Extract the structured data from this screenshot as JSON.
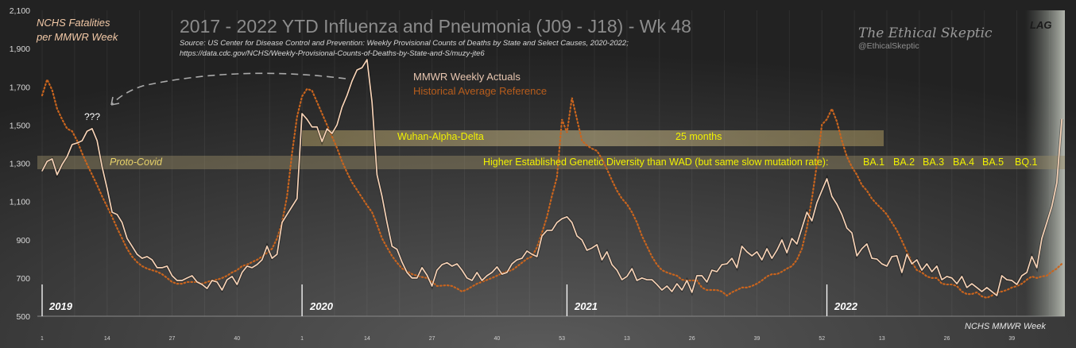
{
  "header": {
    "title": "2017 - 2022 YTD Influenza and Pneumonia (J09 - J18) - Wk 48",
    "source_line1": "Source: US Center for Disease Control and Prevention: Weekly Provisional Counts of Deaths by State and Select Causes, 2020-2022;",
    "source_line2": "https://data.cdc.gov/NCHS/Weekly-Provisional-Counts-of-Deaths-by-State-and-S/muzy-jte6",
    "brand": "The Ethical Skeptic",
    "handle": "@EthicalSkeptic"
  },
  "annotations": {
    "lag": "LAG",
    "question": "???",
    "proto_covid": "Proto-Covid",
    "wad": "Wuhan-Alpha-Delta",
    "months": "25 months",
    "diversity": "Higher Established Genetic Diversity than WAD (but same slow mutation rate):",
    "variants": [
      "BA.1",
      "BA.2",
      "BA.3",
      "BA.4",
      "BA.5",
      "BQ.1"
    ],
    "years": [
      "2019",
      "2020",
      "2021",
      "2022"
    ]
  },
  "chart_data": {
    "type": "line",
    "title": "2017 - 2022 YTD Influenza and Pneumonia (J09 - J18) - Wk 48",
    "ylabel_line1": "NCHS Fatalities",
    "ylabel_line2": "per MMWR Week",
    "xlabel": "NCHS MMWR Week",
    "ylim": [
      500,
      2100
    ],
    "yticks": [
      "2,100",
      "1,900",
      "1,700",
      "1,500",
      "1,300",
      "1,100",
      "900",
      "700",
      "500"
    ],
    "ytick_values": [
      2100,
      1900,
      1700,
      1500,
      1300,
      1100,
      900,
      700,
      500
    ],
    "xtick_labels": [
      "1",
      "14",
      "27",
      "40",
      "1",
      "14",
      "27",
      "40",
      "53",
      "13",
      "26",
      "39",
      "52",
      "13",
      "26",
      "39"
    ],
    "xtick_index": [
      0,
      13,
      26,
      39,
      52,
      65,
      78,
      91,
      104,
      117,
      130,
      143,
      156,
      168,
      181,
      194
    ],
    "years": [
      "2019",
      "2020",
      "2021",
      "2022"
    ],
    "year_start_index": [
      0,
      52,
      105,
      157
    ],
    "legend": [
      "MMWR Weekly Actuals",
      "Historical Average Reference"
    ],
    "colors": {
      "actual": "#f6d2b6",
      "historical": "#c8641e"
    },
    "series": [
      {
        "name": "MMWR Weekly Actuals",
        "style": "solid",
        "values": [
          1260,
          1310,
          1323,
          1240,
          1294,
          1335,
          1398,
          1406,
          1418,
          1468,
          1481,
          1418,
          1281,
          1169,
          1044,
          1032,
          990,
          907,
          866,
          824,
          803,
          812,
          795,
          754,
          754,
          762,
          712,
          687,
          687,
          700,
          712,
          679,
          666,
          645,
          687,
          679,
          637,
          691,
          708,
          666,
          729,
          762,
          754,
          770,
          795,
          866,
          803,
          824,
          990,
          1032,
          1074,
          1115,
          1560,
          1530,
          1490,
          1490,
          1414,
          1480,
          1456,
          1501,
          1593,
          1655,
          1730,
          1788,
          1800,
          1842,
          1620,
          1240,
          1127,
          990,
          866,
          850,
          783,
          729,
          700,
          700,
          754,
          715,
          658,
          741,
          770,
          780,
          762,
          774,
          741,
          700,
          687,
          729,
          687,
          712,
          729,
          758,
          720,
          729,
          774,
          795,
          803,
          841,
          824,
          812,
          920,
          949,
          949,
          990,
          1010,
          1020,
          990,
          920,
          899,
          845,
          857,
          874,
          795,
          837,
          770,
          741,
          691,
          708,
          749,
          687,
          700,
          691,
          691,
          666,
          637,
          658,
          629,
          670,
          637,
          687,
          625,
          712,
          712,
          679,
          741,
          733,
          770,
          774,
          803,
          754,
          866,
          837,
          816,
          837,
          795,
          853,
          803,
          845,
          899,
          832,
          907,
          878,
          961,
          1044,
          999,
          1094,
          1157,
          1219,
          1127,
          1086,
          1032,
          961,
          936,
          816,
          853,
          878,
          803,
          799,
          774,
          762,
          812,
          816,
          729,
          824,
          774,
          795,
          741,
          774,
          733,
          762,
          691,
          708,
          700,
          670,
          708,
          650,
          670,
          650,
          629,
          650,
          629,
          608,
          712,
          691,
          687,
          666,
          712,
          729,
          812,
          754,
          907,
          990,
          1074,
          1198,
          1530
        ]
      },
      {
        "name": "Historical Average Reference",
        "style": "dotted",
        "values": [
          1655,
          1738,
          1684,
          1585,
          1530,
          1481,
          1468,
          1418,
          1352,
          1294,
          1240,
          1186,
          1127,
          1074,
          1020,
          961,
          907,
          853,
          812,
          783,
          762,
          749,
          741,
          733,
          720,
          700,
          679,
          670,
          670,
          679,
          679,
          679,
          670,
          679,
          687,
          691,
          700,
          712,
          729,
          741,
          762,
          770,
          783,
          795,
          812,
          832,
          853,
          907,
          990,
          1127,
          1352,
          1543,
          1650,
          1689,
          1680,
          1620,
          1560,
          1500,
          1440,
          1380,
          1310,
          1252,
          1200,
          1160,
          1120,
          1080,
          1044,
          980,
          907,
          860,
          815,
          780,
          750,
          735,
          720,
          712,
          705,
          700,
          680,
          658,
          660,
          662,
          658,
          645,
          629,
          640,
          655,
          670,
          680,
          690,
          700,
          712,
          725,
          735,
          741,
          760,
          780,
          800,
          812,
          860,
          936,
          1020,
          1130,
          1227,
          1530,
          1460,
          1643,
          1530,
          1418,
          1393,
          1377,
          1365,
          1323,
          1269,
          1211,
          1157,
          1115,
          1086,
          1044,
          990,
          920,
          866,
          812,
          770,
          741,
          729,
          720,
          712,
          691,
          687,
          687,
          687,
          650,
          637,
          637,
          637,
          629,
          608,
          625,
          637,
          650,
          650,
          658,
          670,
          687,
          708,
          720,
          720,
          733,
          749,
          762,
          795,
          853,
          961,
          1115,
          1294,
          1502,
          1530,
          1585,
          1518,
          1418,
          1335,
          1281,
          1240,
          1186,
          1157,
          1115,
          1086,
          1061,
          1032,
          990,
          949,
          895,
          837,
          783,
          741,
          729,
          708,
          700,
          700,
          670,
          666,
          666,
          658,
          629,
          616,
          616,
          625,
          604,
          596,
          608,
          625,
          629,
          637,
          650,
          658,
          670,
          691,
          708,
          700,
          708,
          712,
          733,
          749,
          774
        ]
      }
    ]
  }
}
